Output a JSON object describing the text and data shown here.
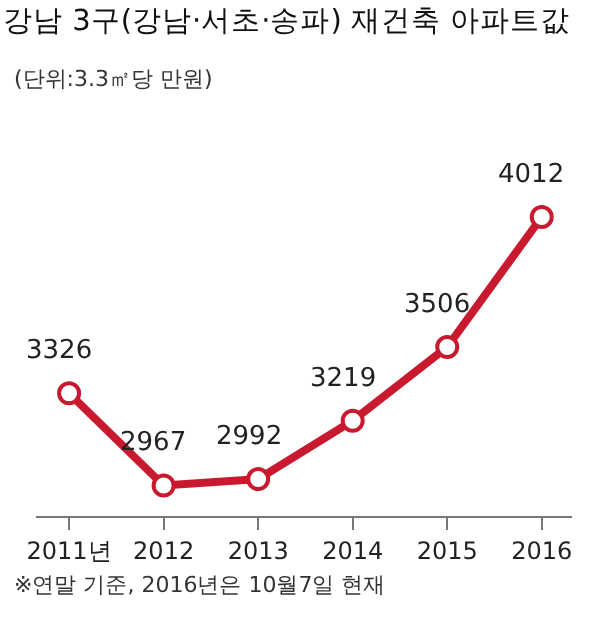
{
  "chart_data": {
    "type": "line",
    "title": "강남 3구(강남·서초·송파) 재건축 아파트값",
    "subtitle": "(단위:3.3㎡당 만원)",
    "categories": [
      "2011년",
      "2012",
      "2013",
      "2014",
      "2015",
      "2016"
    ],
    "series": [
      {
        "color": "#c8192e",
        "values": [
          3326,
          2967,
          2992,
          3219,
          3506,
          4012
        ]
      }
    ],
    "data_labels": true,
    "marker": "circle",
    "line_style": "solid",
    "tick_labels": "x",
    "annotations": [
      "※연말 기준, 2016년은 10월7일 현재"
    ]
  }
}
